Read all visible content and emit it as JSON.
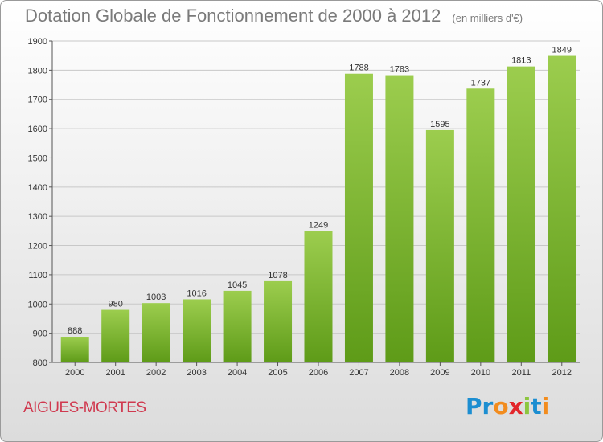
{
  "header": {
    "title": "Dotation Globale de Fonctionnement de 2000 à 2012",
    "unit": "(en milliers d'€)"
  },
  "commune": "AIGUES-MORTES",
  "logo": {
    "letters": [
      "P",
      "r",
      "o",
      "x",
      "i",
      "t",
      "i"
    ],
    "colors": [
      "#1c8ed1",
      "#1c8ed1",
      "#f28c1e",
      "#e2262b",
      "#8cc63f",
      "#1c8ed1",
      "#f28c1e"
    ]
  },
  "chart_data": {
    "type": "bar",
    "categories": [
      "2000",
      "2001",
      "2002",
      "2003",
      "2004",
      "2005",
      "2006",
      "2007",
      "2008",
      "2009",
      "2010",
      "2011",
      "2012"
    ],
    "values": [
      888,
      980,
      1003,
      1016,
      1045,
      1078,
      1249,
      1788,
      1783,
      1595,
      1737,
      1813,
      1849
    ],
    "ylim": [
      800,
      1900
    ],
    "yticks": [
      800,
      900,
      1000,
      1100,
      1200,
      1300,
      1400,
      1500,
      1600,
      1700,
      1800,
      1900
    ],
    "grid": true,
    "bar_color_top": "#9ccd4e",
    "bar_color_bottom": "#5e9b18"
  }
}
